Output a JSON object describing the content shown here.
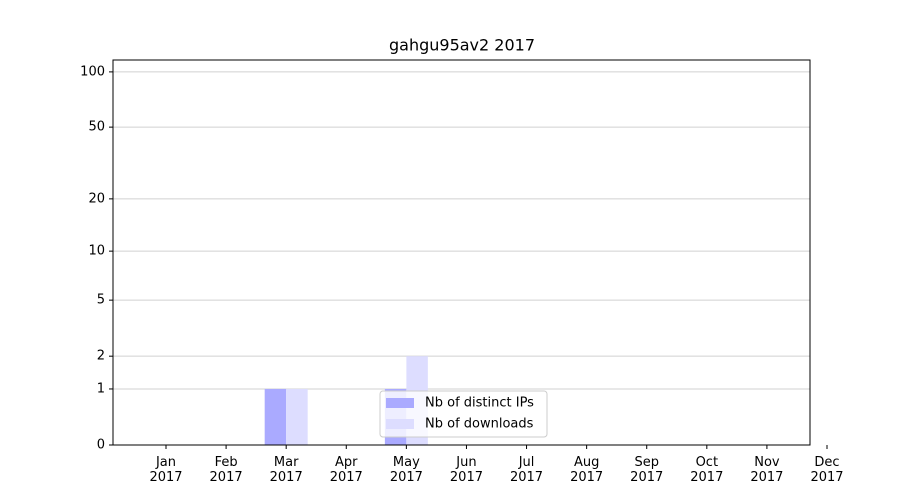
{
  "chart_data": {
    "type": "bar",
    "title": "gahgu95av2 2017",
    "categories": [
      "Jan\n2017",
      "Feb\n2017",
      "Mar\n2017",
      "Apr\n2017",
      "May\n2017",
      "Jun\n2017",
      "Jul\n2017",
      "Aug\n2017",
      "Sep\n2017",
      "Oct\n2017",
      "Nov\n2017",
      "Dec\n2017"
    ],
    "series": [
      {
        "name": "Nb of distinct IPs",
        "color": "#aaaaff",
        "values": [
          0,
          0,
          1,
          0,
          1,
          0,
          0,
          0,
          0,
          0,
          0,
          0
        ]
      },
      {
        "name": "Nb of downloads",
        "color": "#ddddff",
        "values": [
          0,
          0,
          1,
          0,
          2,
          0,
          0,
          0,
          0,
          0,
          0,
          0
        ]
      }
    ],
    "yscale": "log1p",
    "ylim": [
      0,
      116
    ],
    "yticks": [
      0,
      1,
      2,
      5,
      10,
      20,
      50,
      100
    ],
    "grid": true,
    "legend": "lower center"
  }
}
